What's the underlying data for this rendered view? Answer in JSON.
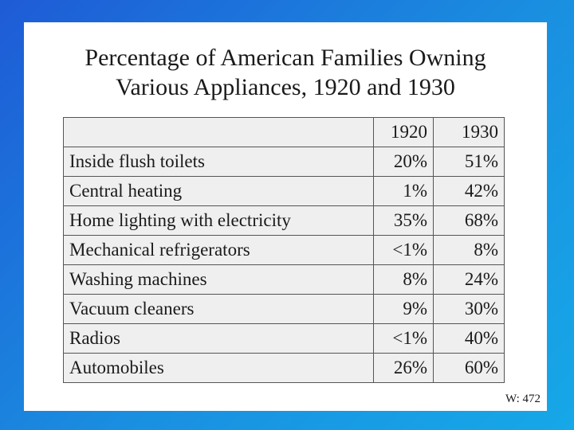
{
  "title_line1": "Percentage of American Families Owning",
  "title_line2": "Various Appliances, 1920 and 1930",
  "table": {
    "corner": "",
    "headers": [
      "1920",
      "1930"
    ],
    "rows": [
      {
        "label": "Inside flush toilets",
        "y1920": "20%",
        "y1930": "51%"
      },
      {
        "label": "Central heating",
        "y1920": "1%",
        "y1930": "42%"
      },
      {
        "label": "Home lighting with electricity",
        "y1920": "35%",
        "y1930": "68%"
      },
      {
        "label": "Mechanical refrigerators",
        "y1920": "<1%",
        "y1930": "8%"
      },
      {
        "label": "Washing machines",
        "y1920": "8%",
        "y1930": "24%"
      },
      {
        "label": "Vacuum cleaners",
        "y1920": "9%",
        "y1930": "30%"
      },
      {
        "label": "Radios",
        "y1920": "<1%",
        "y1930": "40%"
      },
      {
        "label": "Automobiles",
        "y1920": "26%",
        "y1930": "60%"
      }
    ]
  },
  "footer_code": "W: 472",
  "colors": {
    "background_gradient_start": "#1e5bd6",
    "background_gradient_end": "#16a8e8",
    "slide": "#ffffff",
    "table_fill": "#efefef"
  }
}
